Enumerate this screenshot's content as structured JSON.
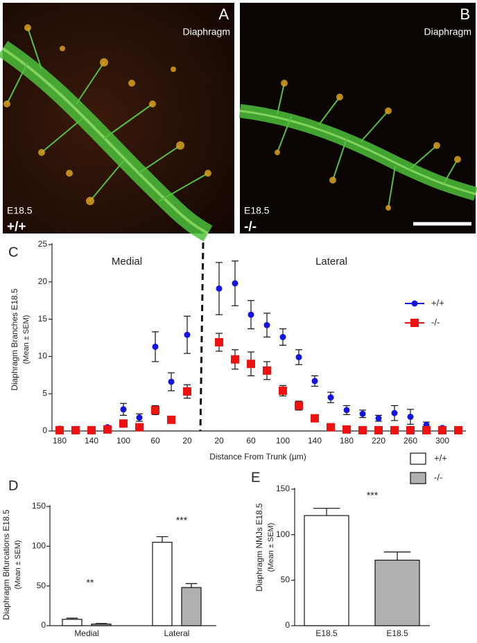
{
  "images": [
    {
      "label": "A",
      "tissue": "Diaphragm",
      "age": "E18.5",
      "genotype": "+/+"
    },
    {
      "label": "B",
      "tissue": "Diaphragm",
      "age": "E18.5",
      "genotype": "-/-"
    }
  ],
  "chart_data": [
    {
      "type": "scatter",
      "label": "C",
      "y_label": [
        "Diaphragm Branches E18.5",
        "(Mean ± SEM)"
      ],
      "x_label": "Distance From Trunk (µm)",
      "annotations": [
        "Medial",
        "Lateral"
      ],
      "categories": [
        180,
        null,
        140,
        null,
        100,
        null,
        60,
        null,
        20,
        20,
        null,
        60,
        null,
        100,
        null,
        140,
        null,
        180,
        null,
        220,
        null,
        260,
        null,
        300,
        null
      ],
      "ylim": [
        0,
        25
      ],
      "yticks": [
        0,
        5,
        10,
        15,
        20,
        25
      ],
      "legend": "upper right",
      "series": [
        {
          "name": "+/+",
          "color": "#1414e0",
          "marker": "circle",
          "values": [
            0.3,
            0.1,
            0.1,
            0.5,
            2.9,
            1.8,
            11.3,
            6.6,
            12.9,
            19.1,
            19.8,
            15.6,
            14.2,
            12.6,
            9.9,
            6.7,
            4.5,
            2.8,
            2.3,
            1.7,
            2.4,
            1.9,
            0.8,
            0.4,
            0.1
          ],
          "errors": [
            0.2,
            0.1,
            0.1,
            0.2,
            0.8,
            0.5,
            2.0,
            1.2,
            2.5,
            3.5,
            3.0,
            1.9,
            1.6,
            1.1,
            1.0,
            0.7,
            0.7,
            0.6,
            0.5,
            0.4,
            1.0,
            1.0,
            0.4,
            0.2,
            0
          ]
        },
        {
          "name": "-/-",
          "color": "#ee1111",
          "marker": "square",
          "values": [
            0.1,
            0.1,
            0.1,
            0.2,
            1.0,
            0.5,
            2.8,
            1.5,
            5.3,
            11.9,
            9.6,
            9.0,
            8.1,
            5.4,
            3.4,
            1.7,
            0.5,
            0.2,
            0.1,
            0.1,
            0.1,
            0.1,
            0.1,
            0.1,
            0.1
          ],
          "errors": [
            0,
            0,
            0,
            0,
            0.3,
            0.3,
            0.6,
            0.3,
            0.9,
            1.2,
            1.3,
            1.6,
            1.2,
            0.7,
            0.6,
            0.3,
            0.3,
            0,
            0,
            0,
            0,
            0,
            0,
            0,
            0
          ]
        }
      ]
    },
    {
      "type": "bar",
      "label": "D",
      "y_label": [
        "Diaphragm Bifurcations E18.5",
        "(Mean ± SEM)"
      ],
      "categories": [
        "Medial",
        "Lateral"
      ],
      "annotations": [
        "**",
        "***"
      ],
      "ylim": [
        0,
        150
      ],
      "yticks": [
        0,
        50,
        100,
        150
      ],
      "series": [
        {
          "color": "#ffffff",
          "values": [
            8,
            105
          ],
          "errors": [
            1.5,
            7
          ]
        },
        {
          "color": "#b0b0b0",
          "values": [
            2,
            48
          ],
          "errors": [
            0.8,
            5
          ]
        }
      ]
    },
    {
      "type": "bar",
      "label": "E",
      "y_label": [
        "Diaphragm NMJs E18.5",
        "(Mean ± SEM)"
      ],
      "categories": [
        "E18.5",
        "E18.5"
      ],
      "annotations": [
        "***"
      ],
      "ylim": [
        0,
        150
      ],
      "yticks": [
        0,
        50,
        100,
        150
      ],
      "series": [
        {
          "name": "+/+",
          "color": "#ffffff",
          "values": [
            121,
            null
          ],
          "errors": [
            8,
            null
          ]
        },
        {
          "name": "-/-",
          "color": "#b0b0b0",
          "values": [
            null,
            72
          ],
          "errors": [
            null,
            9
          ]
        }
      ]
    }
  ]
}
